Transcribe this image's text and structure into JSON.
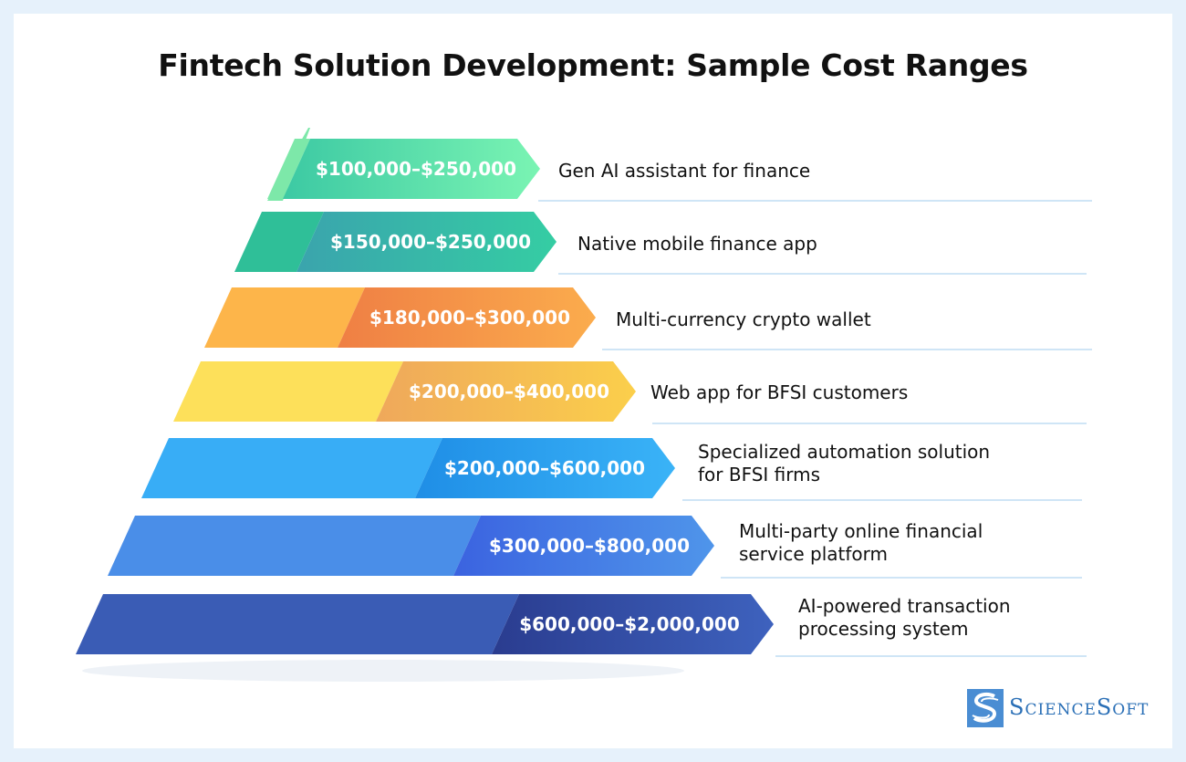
{
  "title": "Fintech Solution Development: Sample Cost Ranges",
  "tiers": [
    {
      "price": "$100,000–$250,000",
      "description": "Gen AI assistant for finance",
      "colors": [
        "#7de8a9",
        "#3cc9a3",
        "#7af4b3"
      ]
    },
    {
      "price": "$150,000–$250,000",
      "description": "Native mobile finance app",
      "colors": [
        "#2fbf98",
        "#3aa4ad",
        "#35cda3"
      ]
    },
    {
      "price": "$180,000–$300,000",
      "description": "Multi-currency crypto wallet",
      "colors": [
        "#fdb54a",
        "#ef7f44",
        "#fbac4d"
      ]
    },
    {
      "price": "$200,000–$400,000",
      "description": "Web app for BFSI customers",
      "colors": [
        "#fde05a",
        "#efa85b",
        "#fbcf4b"
      ]
    },
    {
      "price": "$200,000–$600,000",
      "description": "Specialized automation solution\nfor BFSI firms",
      "colors": [
        "#38adf6",
        "#1f8ee6",
        "#3ab3f7"
      ]
    },
    {
      "price": "$300,000–$800,000",
      "description": "Multi-party online financial\nservice platform",
      "colors": [
        "#4a8ee8",
        "#3b63e0",
        "#4f95ea"
      ]
    },
    {
      "price": "$600,000–$2,000,000",
      "description": "AI-powered transaction\nprocessing system",
      "colors": [
        "#3a5cb5",
        "#2a3c8f",
        "#3e62be"
      ]
    }
  ],
  "logo": {
    "name": "ScienceSoft",
    "text": "ScienceSoft"
  }
}
